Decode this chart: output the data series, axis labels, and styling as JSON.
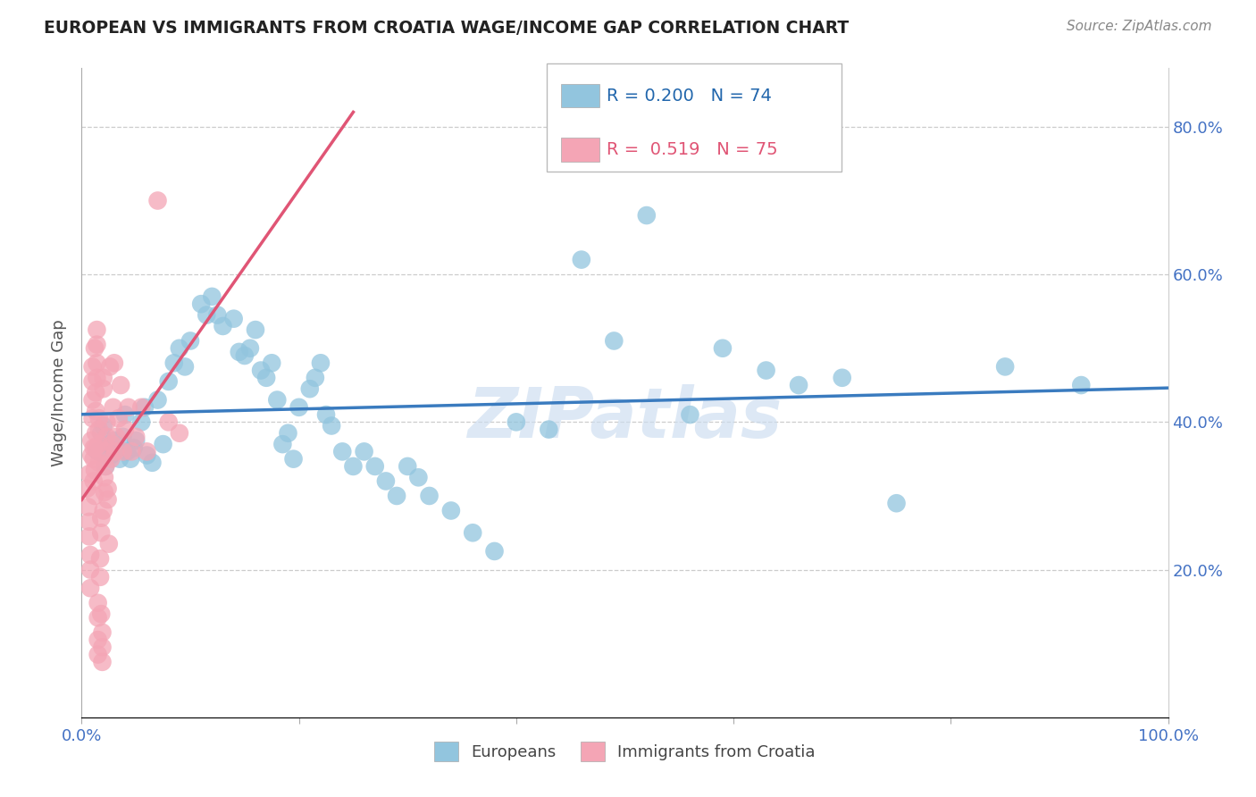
{
  "title": "EUROPEAN VS IMMIGRANTS FROM CROATIA WAGE/INCOME GAP CORRELATION CHART",
  "source": "Source: ZipAtlas.com",
  "ylabel": "Wage/Income Gap",
  "watermark": "ZIPatlas",
  "blue_R": 0.2,
  "blue_N": 74,
  "pink_R": 0.519,
  "pink_N": 75,
  "blue_color": "#92c5de",
  "pink_color": "#f4a5b5",
  "blue_line_color": "#3a7bbf",
  "pink_line_color": "#e05575",
  "xlim": [
    0.0,
    1.0
  ],
  "ylim": [
    0.0,
    0.88
  ],
  "blue_scatter_x": [
    0.015,
    0.018,
    0.02,
    0.022,
    0.025,
    0.027,
    0.03,
    0.032,
    0.035,
    0.038,
    0.04,
    0.042,
    0.045,
    0.048,
    0.05,
    0.055,
    0.058,
    0.06,
    0.065,
    0.07,
    0.075,
    0.08,
    0.085,
    0.09,
    0.095,
    0.1,
    0.11,
    0.115,
    0.12,
    0.125,
    0.13,
    0.14,
    0.145,
    0.15,
    0.155,
    0.16,
    0.165,
    0.17,
    0.175,
    0.18,
    0.185,
    0.19,
    0.195,
    0.2,
    0.21,
    0.215,
    0.22,
    0.225,
    0.23,
    0.24,
    0.25,
    0.26,
    0.27,
    0.28,
    0.29,
    0.3,
    0.31,
    0.32,
    0.34,
    0.36,
    0.38,
    0.4,
    0.43,
    0.46,
    0.49,
    0.52,
    0.56,
    0.59,
    0.63,
    0.66,
    0.7,
    0.75,
    0.85,
    0.92
  ],
  "blue_scatter_y": [
    0.36,
    0.385,
    0.395,
    0.34,
    0.37,
    0.355,
    0.375,
    0.365,
    0.35,
    0.38,
    0.41,
    0.36,
    0.35,
    0.365,
    0.375,
    0.4,
    0.42,
    0.355,
    0.345,
    0.43,
    0.37,
    0.455,
    0.48,
    0.5,
    0.475,
    0.51,
    0.56,
    0.545,
    0.57,
    0.545,
    0.53,
    0.54,
    0.495,
    0.49,
    0.5,
    0.525,
    0.47,
    0.46,
    0.48,
    0.43,
    0.37,
    0.385,
    0.35,
    0.42,
    0.445,
    0.46,
    0.48,
    0.41,
    0.395,
    0.36,
    0.34,
    0.36,
    0.34,
    0.32,
    0.3,
    0.34,
    0.325,
    0.3,
    0.28,
    0.25,
    0.225,
    0.4,
    0.39,
    0.62,
    0.51,
    0.68,
    0.41,
    0.5,
    0.47,
    0.45,
    0.46,
    0.29,
    0.475,
    0.45
  ],
  "pink_scatter_x": [
    0.005,
    0.006,
    0.007,
    0.007,
    0.007,
    0.008,
    0.008,
    0.008,
    0.009,
    0.009,
    0.01,
    0.01,
    0.01,
    0.01,
    0.011,
    0.011,
    0.011,
    0.012,
    0.012,
    0.012,
    0.013,
    0.013,
    0.013,
    0.013,
    0.014,
    0.014,
    0.014,
    0.014,
    0.015,
    0.015,
    0.015,
    0.015,
    0.016,
    0.016,
    0.016,
    0.016,
    0.017,
    0.017,
    0.018,
    0.018,
    0.018,
    0.019,
    0.019,
    0.019,
    0.02,
    0.02,
    0.02,
    0.021,
    0.021,
    0.022,
    0.022,
    0.023,
    0.023,
    0.024,
    0.024,
    0.025,
    0.026,
    0.027,
    0.028,
    0.029,
    0.03,
    0.031,
    0.032,
    0.034,
    0.036,
    0.038,
    0.04,
    0.043,
    0.046,
    0.05,
    0.055,
    0.06,
    0.07,
    0.08,
    0.09
  ],
  "pink_scatter_y": [
    0.31,
    0.285,
    0.33,
    0.265,
    0.245,
    0.22,
    0.2,
    0.175,
    0.355,
    0.375,
    0.405,
    0.43,
    0.455,
    0.475,
    0.35,
    0.365,
    0.32,
    0.3,
    0.335,
    0.5,
    0.365,
    0.385,
    0.415,
    0.44,
    0.46,
    0.48,
    0.505,
    0.525,
    0.155,
    0.135,
    0.105,
    0.085,
    0.39,
    0.405,
    0.37,
    0.345,
    0.215,
    0.19,
    0.27,
    0.25,
    0.14,
    0.115,
    0.095,
    0.075,
    0.445,
    0.46,
    0.28,
    0.305,
    0.325,
    0.36,
    0.34,
    0.38,
    0.4,
    0.295,
    0.31,
    0.235,
    0.475,
    0.35,
    0.37,
    0.42,
    0.48,
    0.36,
    0.38,
    0.405,
    0.45,
    0.36,
    0.39,
    0.42,
    0.36,
    0.38,
    0.42,
    0.36,
    0.7,
    0.4,
    0.385
  ]
}
